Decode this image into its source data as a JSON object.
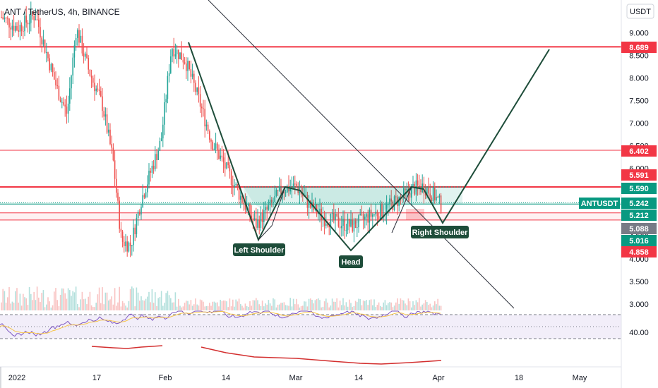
{
  "header": {
    "title": "ANT / TetherUS, 4h, BINANCE"
  },
  "currency_button": "USDT",
  "chart_data": {
    "type": "candlestick",
    "symbol": "ANTUSDT",
    "y_ticks": [
      "9.000",
      "8.500",
      "8.000",
      "7.500",
      "7.000",
      "6.500",
      "6.000",
      "5.500",
      "5.000",
      "4.500",
      "4.000",
      "3.500",
      "3.000"
    ],
    "y_tick_values": [
      9.0,
      8.5,
      8.0,
      7.5,
      7.0,
      6.5,
      6.0,
      5.5,
      5.0,
      4.5,
      4.0,
      3.5,
      3.0
    ],
    "y_range": [
      2.8,
      9.65
    ],
    "x_ticks": [
      "2022",
      "17",
      "Feb",
      "14",
      "Mar",
      "14",
      "Apr",
      "18",
      "May"
    ],
    "rsi_tick": "40.00",
    "price_levels": [
      {
        "label": "8.689",
        "value": 8.689,
        "color": "#f23645"
      },
      {
        "label": "6.402",
        "value": 6.402,
        "color": "#f23645"
      },
      {
        "label": "5.591",
        "value": 5.591,
        "color": "#f23645"
      },
      {
        "label": "5.590",
        "value": 5.59,
        "color": "#089981"
      },
      {
        "label": "5.242",
        "value": 5.242,
        "color": "#089981"
      },
      {
        "label": "5.212",
        "value": 5.212,
        "color": "#089981"
      },
      {
        "label": "5.088",
        "value": 5.088,
        "color": "#787b86"
      },
      {
        "label": "5.016",
        "value": 5.016,
        "color": "#089981"
      },
      {
        "label": "4.858",
        "value": 4.858,
        "color": "#f23645"
      }
    ],
    "ticker_badge": "ANTUSDT",
    "annotations": [
      {
        "text": "Left Shoulder"
      },
      {
        "text": "Head"
      },
      {
        "text": "Right Shoulder"
      }
    ]
  }
}
